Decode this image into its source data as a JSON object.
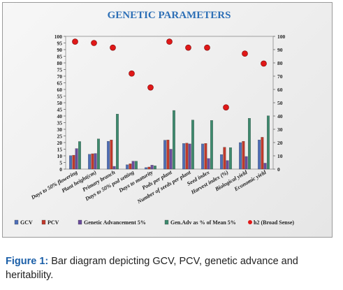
{
  "chart_data": {
    "type": "bar",
    "title": "GENETIC PARAMETERS",
    "categories": [
      "Days to 50% flowering",
      "Plant height(cm)",
      "Primary branch",
      "Days to 50% pod setting",
      "Days to maturity",
      "Pods per plant",
      "Number of seeds per plant",
      "Seed index",
      "Harvest index (%)",
      "Biological yield",
      "Economic yield"
    ],
    "series": [
      {
        "name": "GCV",
        "type": "bar",
        "color": "#4f6fb8",
        "values": [
          10.2,
          11.2,
          21.0,
          3.3,
          1.2,
          21.8,
          19.3,
          19.0,
          11.0,
          20.0,
          22.0
        ]
      },
      {
        "name": "PCV",
        "type": "bar",
        "color": "#c0392b",
        "values": [
          10.5,
          11.6,
          22.0,
          4.0,
          1.6,
          22.0,
          19.6,
          19.4,
          16.5,
          21.0,
          24.0
        ]
      },
      {
        "name": "Genetic Advancement 5%",
        "type": "bar",
        "color": "#6a4c9c",
        "values": [
          15.5,
          11.8,
          2.1,
          6.0,
          3.0,
          15.0,
          19.0,
          8.0,
          6.5,
          9.5,
          4.5
        ]
      },
      {
        "name": "Gen.Adv as % of Mean 5%",
        "type": "bar",
        "color": "#3e8a6e",
        "values": [
          20.8,
          22.8,
          41.5,
          6.0,
          2.5,
          44.2,
          37.0,
          36.7,
          16.2,
          38.3,
          40.2
        ]
      },
      {
        "name": "h2 (Broad Sense)",
        "type": "scatter",
        "axis": "right",
        "color": "#e01818",
        "values": [
          96,
          95,
          91.5,
          72,
          61.5,
          96,
          91.5,
          91.5,
          46.5,
          87,
          79.5
        ]
      }
    ],
    "ylim_left": [
      0,
      100
    ],
    "yticks_left": [
      0,
      5,
      10,
      15,
      20,
      25,
      30,
      35,
      40,
      45,
      50,
      55,
      60,
      65,
      70,
      75,
      80,
      85,
      90,
      95,
      100
    ],
    "ylim_right": [
      0,
      100
    ],
    "yticks_right": [
      0,
      10,
      20,
      30,
      40,
      50,
      60,
      70,
      80,
      90,
      100
    ],
    "legend_position": "bottom",
    "grid": false
  },
  "caption": {
    "label": "Figure 1:",
    "text": " Bar diagram depicting GCV, PCV, genetic advance and heritability."
  }
}
